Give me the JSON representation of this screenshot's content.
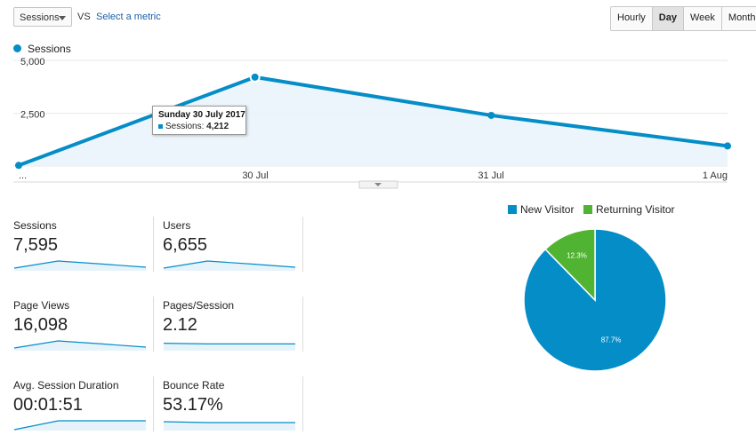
{
  "toolbar": {
    "metric_select": "Sessions",
    "vs_label": "VS",
    "select_metric": "Select a metric",
    "granularity": [
      "Hourly",
      "Day",
      "Week",
      "Month"
    ],
    "active_granularity": "Day"
  },
  "legend": {
    "series_name": "Sessions"
  },
  "tooltip": {
    "title": "Sunday 30 July 2017",
    "series": "Sessions:",
    "value": "4,212"
  },
  "colors": {
    "accent": "#058dc7",
    "returning": "#50b432"
  },
  "chart_data": [
    {
      "type": "line",
      "x": [
        "...",
        "30 Jul",
        "31 Jul",
        "1 Aug"
      ],
      "series": [
        {
          "name": "Sessions",
          "values": [
            30,
            4212,
            2400,
            950
          ]
        }
      ],
      "xlabel": "",
      "ylabel": "",
      "yticks": [
        "5,000",
        "2,500"
      ],
      "ylim": [
        0,
        5000
      ],
      "grid": true
    },
    {
      "type": "pie",
      "categories": [
        "New Visitor",
        "Returning Visitor"
      ],
      "values": [
        87.7,
        12.3
      ],
      "labels": [
        "87.7%",
        "12.3%"
      ],
      "legend_position": "top"
    }
  ],
  "metrics": [
    {
      "label": "Sessions",
      "value": "7,595",
      "spark": [
        0.15,
        0.55,
        0.38,
        0.2
      ]
    },
    {
      "label": "Users",
      "value": "6,655",
      "spark": [
        0.15,
        0.55,
        0.38,
        0.2
      ]
    },
    {
      "label": "Page Views",
      "value": "16,098",
      "spark": [
        0.15,
        0.55,
        0.38,
        0.2
      ]
    },
    {
      "label": "Pages/Session",
      "value": "2.12",
      "spark": [
        0.42,
        0.38,
        0.38,
        0.38
      ]
    },
    {
      "label": "Avg. Session Duration",
      "value": "00:01:51",
      "spark": [
        0.05,
        0.55,
        0.55,
        0.55
      ]
    },
    {
      "label": "Bounce Rate",
      "value": "53.17%",
      "spark": [
        0.5,
        0.45,
        0.45,
        0.45
      ]
    }
  ]
}
